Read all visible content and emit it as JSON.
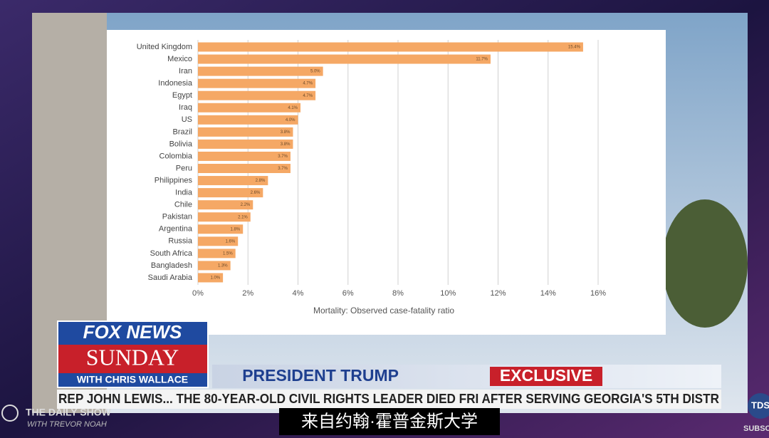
{
  "chart_data": {
    "type": "hbar",
    "x_label": "Mortality: Observed case-fatality ratio",
    "categories": [
      "United Kingdom",
      "Mexico",
      "Iran",
      "Indonesia",
      "Egypt",
      "Iraq",
      "US",
      "Brazil",
      "Bolivia",
      "Colombia",
      "Peru",
      "Philippines",
      "India",
      "Chile",
      "Pakistan",
      "Argentina",
      "Russia",
      "South Africa",
      "Bangladesh",
      "Saudi Arabia"
    ],
    "values": [
      15.4,
      11.7,
      5.0,
      4.7,
      4.7,
      4.1,
      4.0,
      3.8,
      3.8,
      3.7,
      3.7,
      2.8,
      2.6,
      2.2,
      2.1,
      1.8,
      1.6,
      1.5,
      1.3,
      1.0
    ],
    "value_labels": [
      "15.4%",
      "11.7%",
      "5.0%",
      "4.7%",
      "4.7%",
      "4.1%",
      "4.0%",
      "3.8%",
      "3.8%",
      "3.7%",
      "3.7%",
      "2.8%",
      "2.6%",
      "2.2%",
      "2.1%",
      "1.8%",
      "1.6%",
      "1.5%",
      "1.3%",
      "1.0%"
    ],
    "color": "#f5a865",
    "xlim": [
      0,
      16
    ],
    "xticks": [
      {
        "value": 0,
        "label": "0%"
      },
      {
        "value": 2,
        "label": "2%"
      },
      {
        "value": 4,
        "label": "4%"
      },
      {
        "value": 6,
        "label": "6%"
      },
      {
        "value": 8,
        "label": "8%"
      },
      {
        "value": 10,
        "label": "10%"
      },
      {
        "value": 12,
        "label": "12%"
      },
      {
        "value": 14,
        "label": "14%"
      },
      {
        "value": 16,
        "label": "16%"
      }
    ],
    "grid": true
  },
  "broadcast": {
    "network": "FOX NEWS",
    "show": "SUNDAY",
    "host": "WITH CHRIS WALLACE",
    "banner": "PRESIDENT TRUMP",
    "banner_tag": "EXCLUSIVE",
    "ticker": "REP JOHN LEWIS...   THE 80-YEAR-OLD CIVIL RIGHTS LEADER DIED FRI AFTER SERVING GEORGIA'S 5TH DISTR",
    "subtitle": "来自约翰·霍普金斯大学",
    "watermark": "THE DAILY SHOW",
    "watermark_sub": "WITH TREVOR NOAH",
    "corner": "TDS",
    "corner_sub": "SUBSCR"
  }
}
